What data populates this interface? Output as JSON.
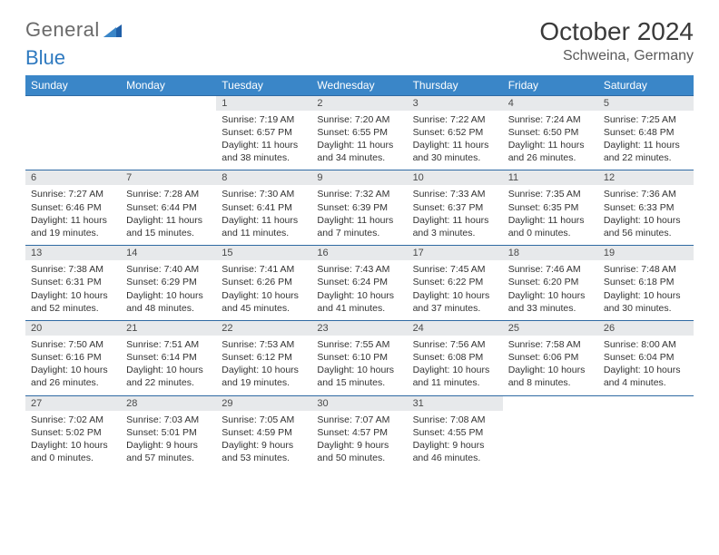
{
  "logo": {
    "text1": "General",
    "text2": "Blue"
  },
  "title": "October 2024",
  "location": "Schweina, Germany",
  "colors": {
    "header_bg": "#3a86c8",
    "header_text": "#ffffff",
    "daynum_bg": "#e7e9eb",
    "row_divider": "#2f6aa3",
    "logo_gray": "#6a6a6a",
    "logo_blue": "#2f7ac0"
  },
  "dayNames": [
    "Sunday",
    "Monday",
    "Tuesday",
    "Wednesday",
    "Thursday",
    "Friday",
    "Saturday"
  ],
  "weeks": [
    [
      null,
      null,
      {
        "n": "1",
        "sunrise": "7:19 AM",
        "sunset": "6:57 PM",
        "day_h": "11",
        "day_m": "38"
      },
      {
        "n": "2",
        "sunrise": "7:20 AM",
        "sunset": "6:55 PM",
        "day_h": "11",
        "day_m": "34"
      },
      {
        "n": "3",
        "sunrise": "7:22 AM",
        "sunset": "6:52 PM",
        "day_h": "11",
        "day_m": "30"
      },
      {
        "n": "4",
        "sunrise": "7:24 AM",
        "sunset": "6:50 PM",
        "day_h": "11",
        "day_m": "26"
      },
      {
        "n": "5",
        "sunrise": "7:25 AM",
        "sunset": "6:48 PM",
        "day_h": "11",
        "day_m": "22"
      }
    ],
    [
      {
        "n": "6",
        "sunrise": "7:27 AM",
        "sunset": "6:46 PM",
        "day_h": "11",
        "day_m": "19"
      },
      {
        "n": "7",
        "sunrise": "7:28 AM",
        "sunset": "6:44 PM",
        "day_h": "11",
        "day_m": "15"
      },
      {
        "n": "8",
        "sunrise": "7:30 AM",
        "sunset": "6:41 PM",
        "day_h": "11",
        "day_m": "11"
      },
      {
        "n": "9",
        "sunrise": "7:32 AM",
        "sunset": "6:39 PM",
        "day_h": "11",
        "day_m": "7"
      },
      {
        "n": "10",
        "sunrise": "7:33 AM",
        "sunset": "6:37 PM",
        "day_h": "11",
        "day_m": "3"
      },
      {
        "n": "11",
        "sunrise": "7:35 AM",
        "sunset": "6:35 PM",
        "day_h": "11",
        "day_m": "0"
      },
      {
        "n": "12",
        "sunrise": "7:36 AM",
        "sunset": "6:33 PM",
        "day_h": "10",
        "day_m": "56"
      }
    ],
    [
      {
        "n": "13",
        "sunrise": "7:38 AM",
        "sunset": "6:31 PM",
        "day_h": "10",
        "day_m": "52"
      },
      {
        "n": "14",
        "sunrise": "7:40 AM",
        "sunset": "6:29 PM",
        "day_h": "10",
        "day_m": "48"
      },
      {
        "n": "15",
        "sunrise": "7:41 AM",
        "sunset": "6:26 PM",
        "day_h": "10",
        "day_m": "45"
      },
      {
        "n": "16",
        "sunrise": "7:43 AM",
        "sunset": "6:24 PM",
        "day_h": "10",
        "day_m": "41"
      },
      {
        "n": "17",
        "sunrise": "7:45 AM",
        "sunset": "6:22 PM",
        "day_h": "10",
        "day_m": "37"
      },
      {
        "n": "18",
        "sunrise": "7:46 AM",
        "sunset": "6:20 PM",
        "day_h": "10",
        "day_m": "33"
      },
      {
        "n": "19",
        "sunrise": "7:48 AM",
        "sunset": "6:18 PM",
        "day_h": "10",
        "day_m": "30"
      }
    ],
    [
      {
        "n": "20",
        "sunrise": "7:50 AM",
        "sunset": "6:16 PM",
        "day_h": "10",
        "day_m": "26"
      },
      {
        "n": "21",
        "sunrise": "7:51 AM",
        "sunset": "6:14 PM",
        "day_h": "10",
        "day_m": "22"
      },
      {
        "n": "22",
        "sunrise": "7:53 AM",
        "sunset": "6:12 PM",
        "day_h": "10",
        "day_m": "19"
      },
      {
        "n": "23",
        "sunrise": "7:55 AM",
        "sunset": "6:10 PM",
        "day_h": "10",
        "day_m": "15"
      },
      {
        "n": "24",
        "sunrise": "7:56 AM",
        "sunset": "6:08 PM",
        "day_h": "10",
        "day_m": "11"
      },
      {
        "n": "25",
        "sunrise": "7:58 AM",
        "sunset": "6:06 PM",
        "day_h": "10",
        "day_m": "8"
      },
      {
        "n": "26",
        "sunrise": "8:00 AM",
        "sunset": "6:04 PM",
        "day_h": "10",
        "day_m": "4"
      }
    ],
    [
      {
        "n": "27",
        "sunrise": "7:02 AM",
        "sunset": "5:02 PM",
        "day_h": "10",
        "day_m": "0"
      },
      {
        "n": "28",
        "sunrise": "7:03 AM",
        "sunset": "5:01 PM",
        "day_h": "9",
        "day_m": "57"
      },
      {
        "n": "29",
        "sunrise": "7:05 AM",
        "sunset": "4:59 PM",
        "day_h": "9",
        "day_m": "53"
      },
      {
        "n": "30",
        "sunrise": "7:07 AM",
        "sunset": "4:57 PM",
        "day_h": "9",
        "day_m": "50"
      },
      {
        "n": "31",
        "sunrise": "7:08 AM",
        "sunset": "4:55 PM",
        "day_h": "9",
        "day_m": "46"
      },
      null,
      null
    ]
  ]
}
